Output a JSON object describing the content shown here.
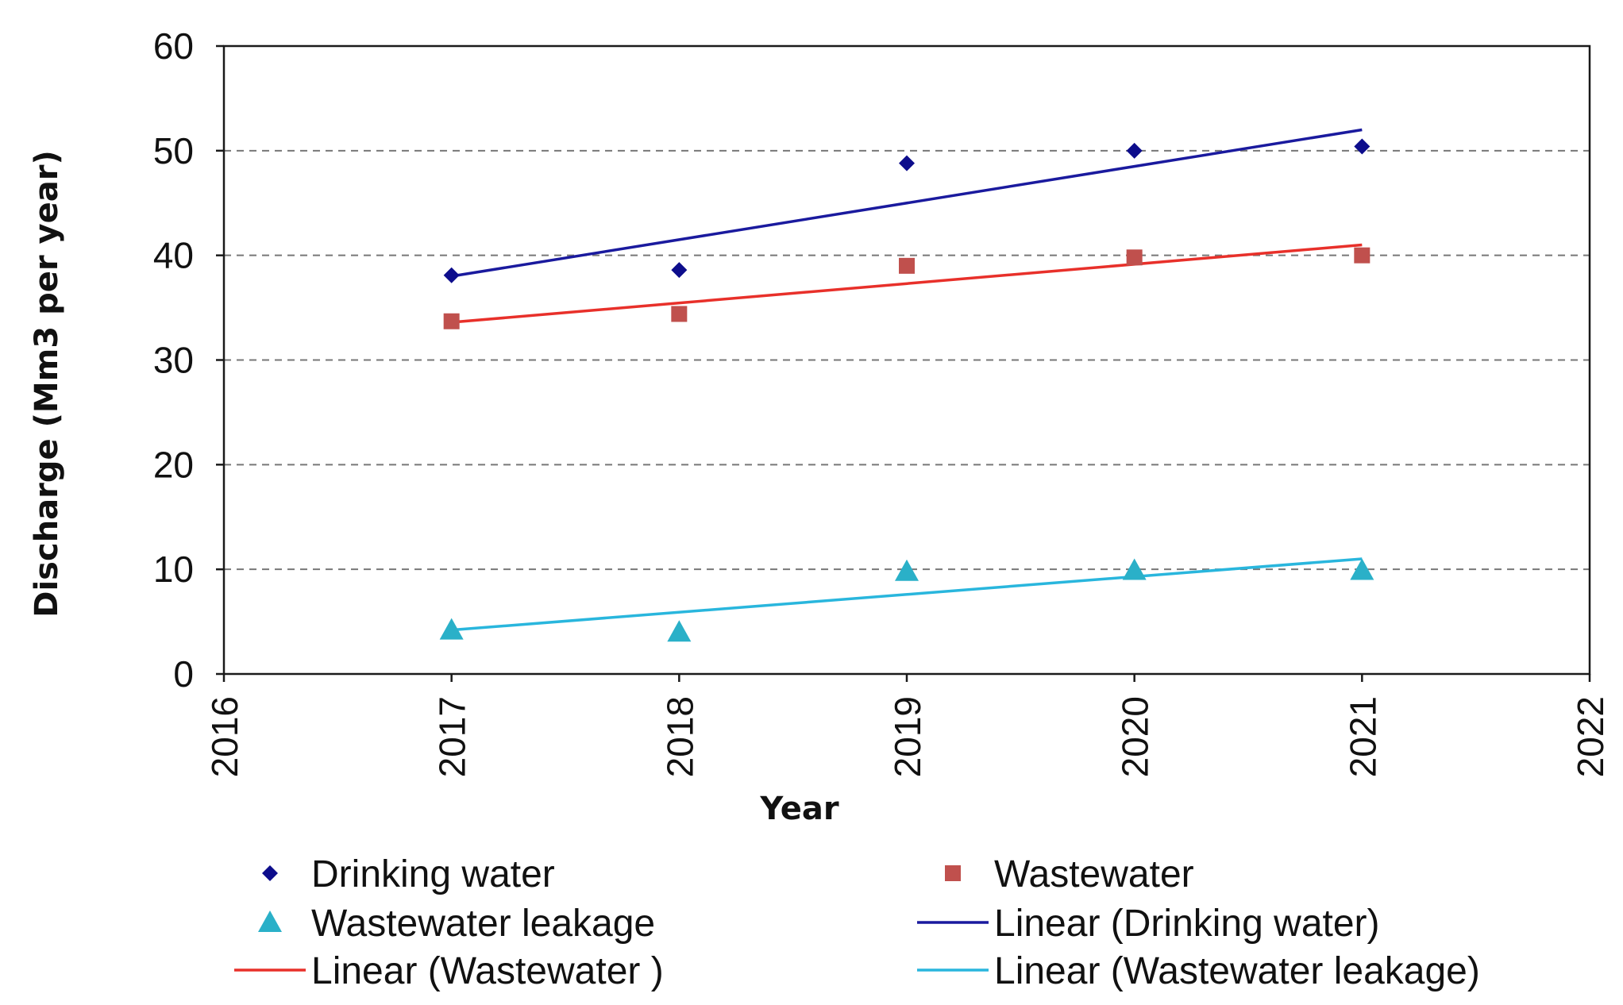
{
  "chart_data": {
    "type": "scatter",
    "title": "",
    "xlabel": "Year",
    "ylabel": "Discharge (Mm3  per year)",
    "xlim": [
      2016,
      2022
    ],
    "ylim": [
      0,
      60
    ],
    "x_ticks": [
      "2016",
      "2017",
      "2018",
      "2019",
      "2020",
      "2021",
      "2022"
    ],
    "y_ticks": [
      "0",
      "10",
      "20",
      "30",
      "40",
      "50",
      "60"
    ],
    "grid": "horizontal dashed",
    "legend_position": "bottom",
    "x": [
      2017,
      2018,
      2019,
      2020,
      2021
    ],
    "series": [
      {
        "name": "Drinking water",
        "marker": "diamond",
        "color": "#0d0d8c",
        "values": [
          38.1,
          38.6,
          48.8,
          50.0,
          50.4
        ]
      },
      {
        "name": "Wastewater",
        "marker": "square",
        "color": "#c0504d",
        "values": [
          33.7,
          34.4,
          39.0,
          39.8,
          40.0
        ]
      },
      {
        "name": "Wastewater leakage",
        "marker": "triangle",
        "color": "#2ab0c8",
        "values": [
          4.2,
          4.0,
          9.8,
          9.9,
          9.9
        ]
      }
    ],
    "trendlines": [
      {
        "name": "Linear (Drinking water)",
        "type": "linear",
        "color": "#1a1a9e",
        "x_range": [
          2017,
          2021
        ],
        "y_range": [
          38.0,
          52.0
        ]
      },
      {
        "name": "Linear (Wastewater )",
        "type": "linear",
        "color": "#e8302a",
        "x_range": [
          2017,
          2021
        ],
        "y_range": [
          33.6,
          41.0
        ]
      },
      {
        "name": "Linear (Wastewater leakage)",
        "type": "linear",
        "color": "#29b6dd",
        "x_range": [
          2017,
          2021
        ],
        "y_range": [
          4.2,
          11.0
        ]
      }
    ]
  }
}
